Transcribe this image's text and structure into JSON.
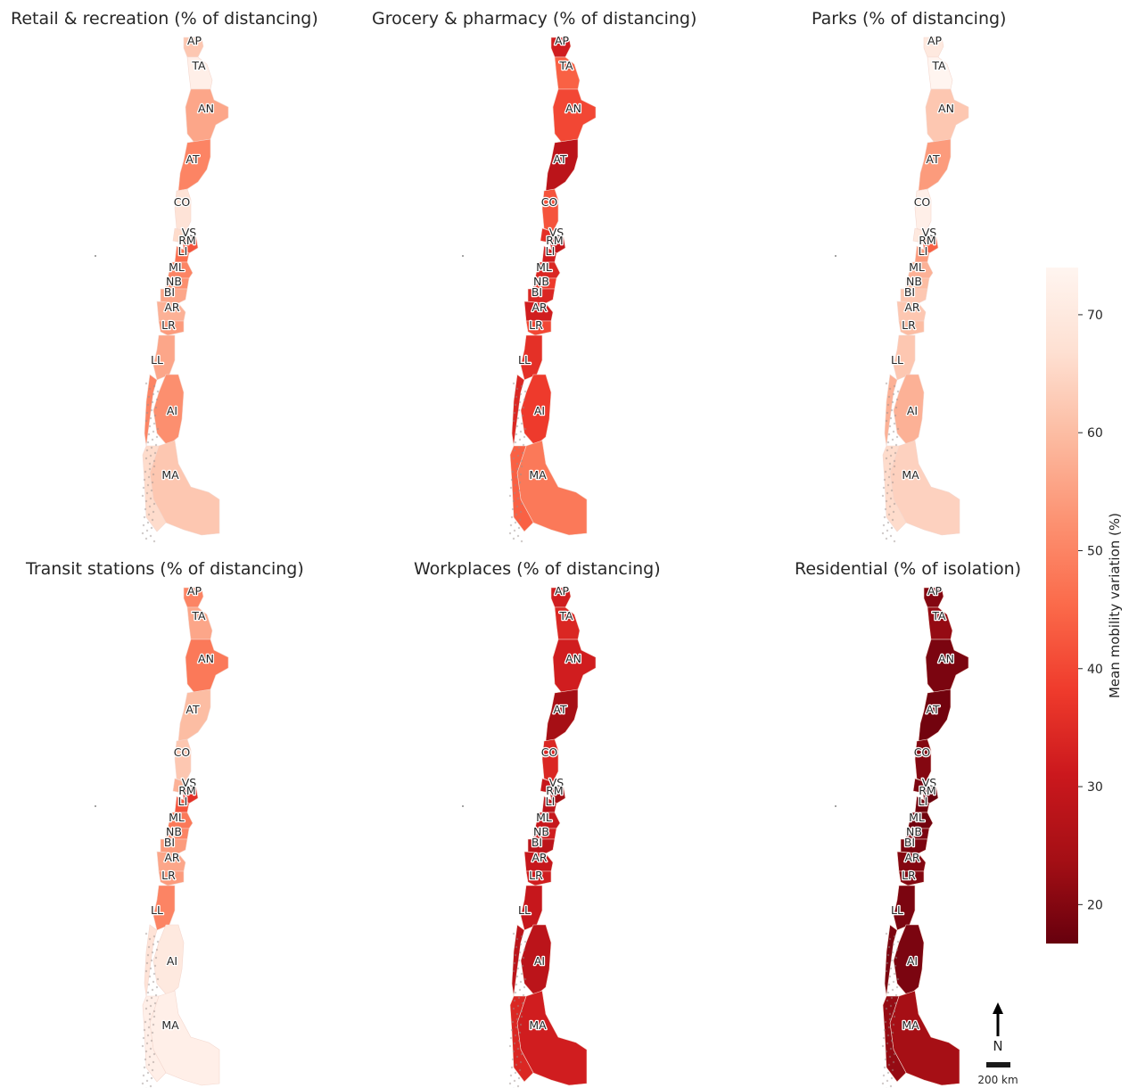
{
  "panels": [
    {
      "title": "Retail & recreation (% of distancing)",
      "values": {
        "AP": 62,
        "TA": 72,
        "AN": 56,
        "AT": 50,
        "CO": 68,
        "VS": 66,
        "RM": 42,
        "LI": 46,
        "ML": 50,
        "NB": 52,
        "BI": 56,
        "AR": 58,
        "LR": 54,
        "LL": 56,
        "AI": 52,
        "MA": 62,
        "AU": 50,
        "MG": 66
      }
    },
    {
      "title": "Grocery & pharmacy (% of distancing)",
      "values": {
        "AP": 32,
        "TA": 44,
        "AN": 40,
        "AT": 28,
        "CO": 42,
        "VS": 36,
        "RM": 30,
        "LI": 32,
        "ML": 34,
        "NB": 38,
        "BI": 34,
        "AR": 32,
        "LR": 40,
        "LL": 36,
        "AI": 38,
        "MA": 48,
        "AU": 34,
        "MG": 44
      }
    },
    {
      "title": "Parks (% of distancing)",
      "values": {
        "AP": 70,
        "TA": 74,
        "AN": 62,
        "AT": 54,
        "CO": 72,
        "VS": 70,
        "RM": 44,
        "LI": 54,
        "ML": 58,
        "NB": 60,
        "BI": 62,
        "AR": 62,
        "LR": 60,
        "LL": 62,
        "AI": 58,
        "MA": 64,
        "AU": 58,
        "MG": 66
      }
    },
    {
      "title": "Transit stations (% of distancing)",
      "values": {
        "AP": 50,
        "TA": 56,
        "AN": 48,
        "AT": 60,
        "CO": 62,
        "VS": 58,
        "RM": 36,
        "LI": 42,
        "ML": 48,
        "NB": 50,
        "BI": 54,
        "AR": 56,
        "LR": 54,
        "LL": 50,
        "AI": 70,
        "MA": 72,
        "AU": 68,
        "MG": 72
      }
    },
    {
      "title": "Workplaces (% of distancing)",
      "values": {
        "AP": 32,
        "TA": 34,
        "AN": 32,
        "AT": 24,
        "CO": 34,
        "VS": 30,
        "RM": 24,
        "LI": 28,
        "ML": 30,
        "NB": 32,
        "BI": 28,
        "AR": 30,
        "LR": 32,
        "LL": 30,
        "AI": 28,
        "MA": 32,
        "AU": 28,
        "MG": 34
      }
    },
    {
      "title": "Residential (% of isolation)",
      "values": {
        "AP": 20,
        "TA": 22,
        "AN": 19,
        "AT": 18,
        "CO": 20,
        "VS": 19,
        "RM": 17,
        "LI": 18,
        "ML": 18,
        "NB": 19,
        "BI": 19,
        "AR": 20,
        "LR": 20,
        "LL": 19,
        "AI": 19,
        "MA": 24,
        "AU": 19,
        "MG": 22
      }
    }
  ],
  "region_labels": [
    "AP",
    "TA",
    "AN",
    "AT",
    "CO",
    "VS",
    "RM",
    "LI",
    "ML",
    "NB",
    "BI",
    "AR",
    "LR",
    "LL",
    "AI",
    "MA"
  ],
  "colorbar": {
    "label": "Mean mobility variation (%)",
    "min": 16.7,
    "max": 74.0,
    "ticks": [
      20,
      30,
      40,
      50,
      60,
      70
    ],
    "tick_labels": [
      "20",
      "30",
      "40",
      "50",
      "60",
      "70"
    ],
    "colormap": "Reds_r",
    "colors": [
      "#67000d",
      "#a50f15",
      "#cb181d",
      "#ef3b2c",
      "#fb6a4a",
      "#fc9272",
      "#fcbba1",
      "#fee0d2",
      "#fff5f0"
    ]
  },
  "north_arrow": {
    "label": "N"
  },
  "scale_bar": {
    "label": "200 km"
  }
}
